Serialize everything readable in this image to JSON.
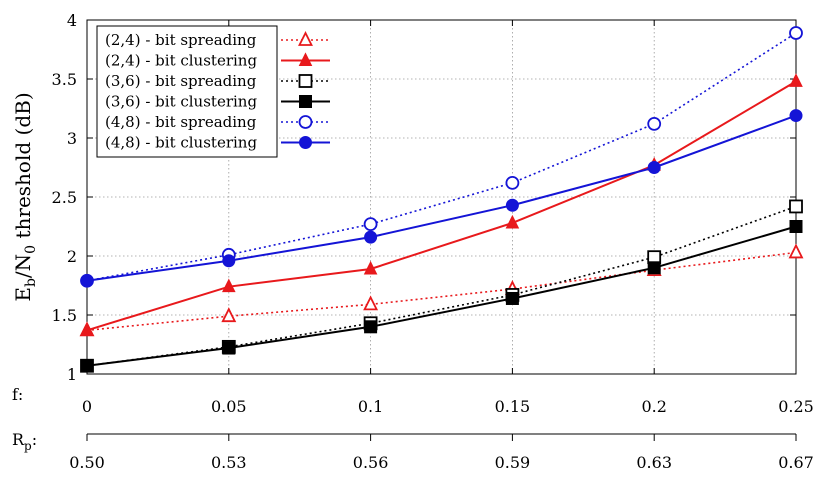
{
  "chart_data": {
    "type": "line",
    "ylabel": "E_b/N_0 threshold (dB)",
    "ylabel_parts": {
      "main1": "E",
      "sub1": "b",
      "main2": "/N",
      "sub2": "0",
      "rest": " threshold (dB)"
    },
    "ylim": [
      1,
      4
    ],
    "yticks": [
      "1",
      "1.5",
      "2",
      "2.5",
      "3",
      "3.5",
      "4"
    ],
    "x": [
      0,
      0.05,
      0.1,
      0.15,
      0.2,
      0.25
    ],
    "xlim": [
      0,
      0.25
    ],
    "xlabel": "f:",
    "xtick_labels": [
      "0",
      "0.05",
      "0.1",
      "0.15",
      "0.2",
      "0.25"
    ],
    "secondary_axis": {
      "label": "R_p:",
      "label_parts": {
        "main": "R",
        "sub": "p",
        "suffix": ":"
      },
      "tick_labels": [
        "0.50",
        "0.53",
        "0.56",
        "0.59",
        "0.63",
        "0.67"
      ]
    },
    "grid": true,
    "legend_position": "top-left",
    "series": [
      {
        "name": "(2,4) - bit spreading",
        "color": "#e8191c",
        "dash": "dotted",
        "marker": "triangle-open",
        "values": [
          1.37,
          1.49,
          1.59,
          1.72,
          1.88,
          2.03
        ]
      },
      {
        "name": "(2,4) - bit clustering",
        "color": "#e8191c",
        "dash": "solid",
        "marker": "triangle-filled",
        "values": [
          1.37,
          1.74,
          1.89,
          2.28,
          2.77,
          3.48
        ]
      },
      {
        "name": "(3,6) - bit spreading",
        "color": "#000000",
        "dash": "dotted",
        "marker": "square-open",
        "values": [
          1.07,
          1.23,
          1.43,
          1.67,
          1.99,
          2.42
        ]
      },
      {
        "name": "(3,6) - bit clustering",
        "color": "#000000",
        "dash": "solid",
        "marker": "square-filled",
        "values": [
          1.07,
          1.22,
          1.4,
          1.64,
          1.9,
          2.25
        ]
      },
      {
        "name": "(4,8) - bit spreading",
        "color": "#1414d6",
        "dash": "dotted",
        "marker": "circle-open",
        "values": [
          1.79,
          2.01,
          2.27,
          2.62,
          3.12,
          3.89
        ]
      },
      {
        "name": "(4,8) - bit clustering",
        "color": "#1414d6",
        "dash": "solid",
        "marker": "circle-filled",
        "values": [
          1.79,
          1.96,
          2.16,
          2.43,
          2.75,
          3.19
        ]
      }
    ]
  }
}
